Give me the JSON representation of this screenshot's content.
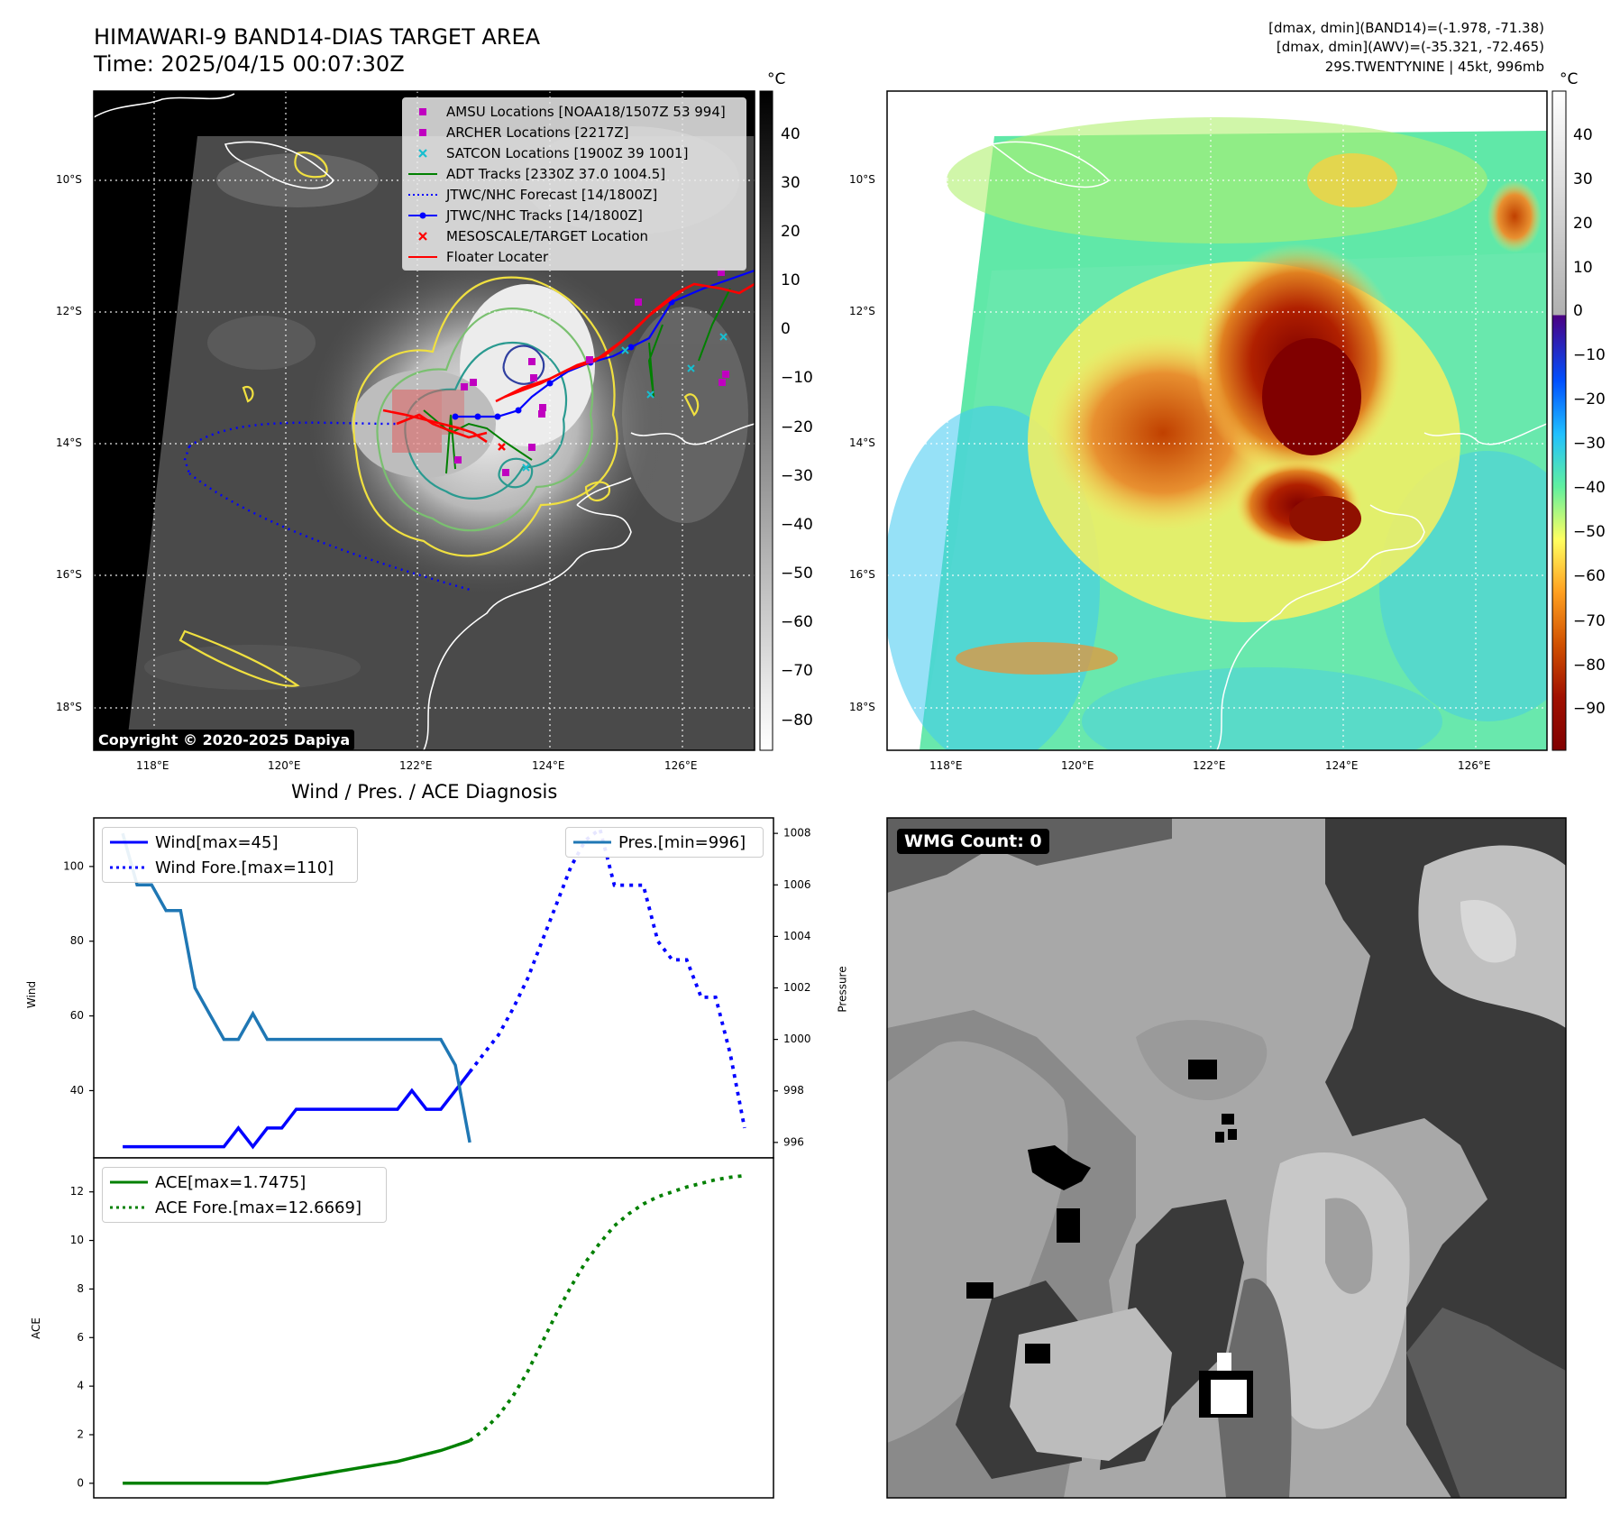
{
  "header": {
    "title_line1": "HIMAWARI-9 BAND14-DIAS TARGET AREA",
    "title_line2": "Time: 2025/04/15 00:07:30Z",
    "info_line1": "[dmax, dmin](BAND14)=(-1.978, -71.38)",
    "info_line2": "[dmax, dmin](AWV)=(-35.321, -72.465)",
    "info_line3": "29S.TWENTYNINE | 45kt, 996mb"
  },
  "copyright": "Copyright © 2020-2025 Dapiya",
  "wmg_badge": "WMG Count: 0",
  "colorbar_unit": "°C",
  "colorbar1_ticks": [
    "40",
    "30",
    "20",
    "10",
    "0",
    "−10",
    "−20",
    "−30",
    "−40",
    "−50",
    "−60",
    "−70",
    "−80"
  ],
  "colorbar2_ticks": [
    "40",
    "30",
    "20",
    "10",
    "0",
    "−10",
    "−20",
    "−30",
    "−40",
    "−50",
    "−60",
    "−70",
    "−80",
    "−90"
  ],
  "map": {
    "lat_labels": [
      "10°S",
      "12°S",
      "14°S",
      "16°S",
      "18°S"
    ],
    "lon_labels": [
      "118°E",
      "120°E",
      "122°E",
      "124°E",
      "126°E"
    ]
  },
  "legend_map": [
    {
      "label": "AMSU Locations [NOAA18/1507Z 53 994]",
      "symbol": "square",
      "color": "#c000c0"
    },
    {
      "label": "ARCHER Locations [2217Z]",
      "symbol": "square",
      "color": "#c000c0"
    },
    {
      "label": "SATCON Locations [1900Z 39 1001]",
      "symbol": "x",
      "color": "#17becf"
    },
    {
      "label": "ADT Tracks [2330Z 37.0 1004.5]",
      "symbol": "line",
      "color": "#008000"
    },
    {
      "label": "JTWC/NHC Forecast [14/1800Z]",
      "symbol": "dotted",
      "color": "#0000ff"
    },
    {
      "label": "JTWC/NHC Tracks [14/1800Z]",
      "symbol": "line-dot",
      "color": "#0000ff"
    },
    {
      "label": "MESOSCALE/TARGET Location",
      "symbol": "x",
      "color": "#ff0000"
    },
    {
      "label": "Floater Locater",
      "symbol": "line",
      "color": "#ff0000"
    }
  ],
  "chart_data": [
    {
      "type": "line",
      "title": "Wind / Pres. / ACE Diagnosis",
      "ylabel": "Wind",
      "y2label": "Pressure",
      "ylim": [
        22,
        113
      ],
      "y2lim": [
        995.4,
        1008.6
      ],
      "yticks": [
        40,
        60,
        80,
        100
      ],
      "y2ticks": [
        996,
        998,
        1000,
        1002,
        1004,
        1006,
        1008
      ],
      "xlim": [
        0,
        47
      ],
      "series": [
        {
          "name": "Wind[max=45]",
          "axis": "left",
          "style": "solid",
          "color": "#0000ff",
          "x": [
            2,
            3,
            4,
            5,
            6,
            7,
            8,
            9,
            10,
            11,
            12,
            13,
            14,
            15,
            16,
            17,
            18,
            19,
            20,
            21,
            22,
            23,
            24,
            25,
            26
          ],
          "y": [
            25,
            25,
            25,
            25,
            25,
            25,
            25,
            25,
            30,
            25,
            30,
            30,
            35,
            35,
            35,
            35,
            35,
            35,
            35,
            35,
            40,
            35,
            35,
            40,
            45
          ]
        },
        {
          "name": "Wind Fore.[max=110]",
          "axis": "left",
          "style": "dotted",
          "color": "#0000ff",
          "x": [
            26,
            27,
            28,
            29,
            30,
            31,
            32,
            33,
            34,
            35,
            36,
            37,
            38,
            39,
            40,
            41,
            42,
            43,
            44,
            45
          ],
          "y": [
            45,
            50,
            55,
            62,
            70,
            80,
            90,
            100,
            107,
            110,
            95,
            95,
            95,
            80,
            75,
            75,
            65,
            65,
            50,
            30
          ]
        },
        {
          "name": "Pres.[min=996]",
          "axis": "right",
          "style": "solid",
          "color": "#1f77b4",
          "x": [
            2,
            3,
            4,
            5,
            6,
            7,
            8,
            9,
            10,
            11,
            12,
            13,
            14,
            15,
            16,
            17,
            18,
            19,
            20,
            21,
            22,
            23,
            24,
            25,
            26
          ],
          "y": [
            1008,
            1006,
            1006,
            1005,
            1005,
            1002,
            1001,
            1000,
            1000,
            1001,
            1000,
            1000,
            1000,
            1000,
            1000,
            1000,
            1000,
            1000,
            1000,
            1000,
            1000,
            1000,
            1000,
            999,
            996
          ]
        }
      ]
    },
    {
      "type": "line",
      "ylabel": "ACE",
      "ylim": [
        -0.6,
        13.4
      ],
      "yticks": [
        0,
        2,
        4,
        6,
        8,
        10,
        12
      ],
      "xlim": [
        0,
        47
      ],
      "series": [
        {
          "name": "ACE[max=1.7475]",
          "style": "solid",
          "color": "#008000",
          "x": [
            2,
            3,
            4,
            5,
            6,
            7,
            8,
            9,
            10,
            11,
            12,
            13,
            14,
            15,
            16,
            17,
            18,
            19,
            20,
            21,
            22,
            23,
            24,
            25,
            26
          ],
          "y": [
            0,
            0,
            0,
            0,
            0,
            0,
            0,
            0,
            0,
            0,
            0,
            0.1,
            0.2,
            0.3,
            0.4,
            0.5,
            0.6,
            0.7,
            0.8,
            0.9,
            1.05,
            1.2,
            1.35,
            1.55,
            1.75
          ]
        },
        {
          "name": "ACE Fore.[max=12.6669]",
          "style": "dotted",
          "color": "#008000",
          "x": [
            26,
            27,
            28,
            29,
            30,
            31,
            32,
            33,
            34,
            35,
            36,
            37,
            38,
            39,
            40,
            41,
            42,
            43,
            44,
            45
          ],
          "y": [
            1.75,
            2.2,
            2.8,
            3.6,
            4.6,
            5.8,
            7.0,
            8.1,
            9.1,
            9.9,
            10.6,
            11.1,
            11.5,
            11.8,
            12.0,
            12.2,
            12.35,
            12.5,
            12.6,
            12.67
          ]
        }
      ]
    }
  ]
}
